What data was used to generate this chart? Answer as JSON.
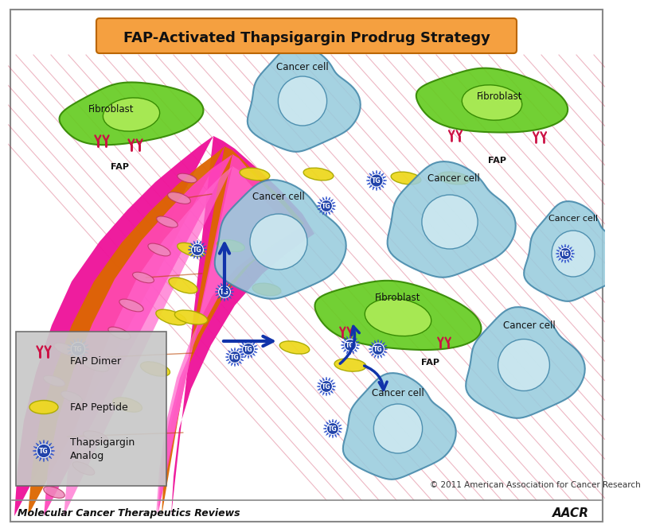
{
  "title": "FAP-Activated Thapsigargin Prodrug Strategy",
  "title_bg": "#F5A040",
  "title_color": "#111111",
  "bg_color": "#FFFFFF",
  "border_color": "#888888",
  "footer_text": "Molecular Cancer Therapeutics Reviews",
  "copyright_text": "© 2011 American Association for Cancer Research",
  "fibroblast_color": "#66CC22",
  "fibroblast_border": "#338800",
  "fibroblast_nucleus_color": "#AAEA55",
  "cancer_cell_color": "#99CCDD",
  "cancer_cell_border": "#4488AA",
  "cancer_nucleus_color": "#CCE8F0",
  "blood_vessel_magenta": "#EE1199",
  "blood_vessel_orange": "#DD6600",
  "blood_vessel_pink": "#FF44BB",
  "tg_body_color": "#2244AA",
  "tg_spike_color": "#3355CC",
  "tg_text_color": "#FFFFFF",
  "arrow_color": "#1133AA",
  "fap_dimer_color": "#CC1144",
  "peptide_color": "#EED820",
  "peptide_border": "#AAAA00",
  "stroma_line_color": "#CC3355",
  "legend_bg": "#C8C8C8",
  "legend_border": "#666666"
}
